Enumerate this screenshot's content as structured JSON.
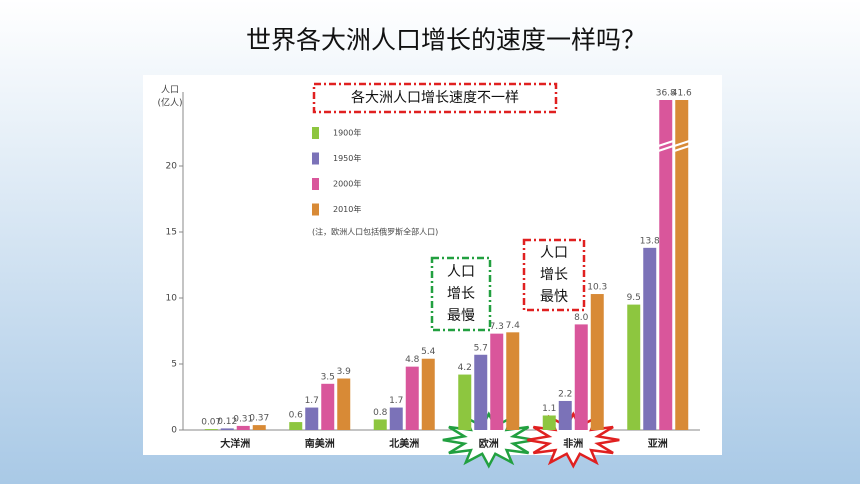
{
  "chart_data": {
    "type": "bar",
    "title": "世界各大洲人口增长的速度一样吗？",
    "y_label": [
      "人口",
      "(亿人)"
    ],
    "note": "(注，欧洲人口包括俄罗斯全部人口)",
    "categories": [
      "大洋洲",
      "南美洲",
      "北美洲",
      "欧洲",
      "非洲",
      "亚洲"
    ],
    "series": [
      {
        "name": "1900年",
        "color": "#8dc63f",
        "values": [
          0.07,
          0.6,
          0.8,
          4.2,
          1.1,
          9.5
        ],
        "value_labels": [
          "0.07",
          "0.6",
          "0.8",
          "4.2",
          "1.1",
          "9.5"
        ]
      },
      {
        "name": "1950年",
        "color": "#7b72b8",
        "values": [
          0.12,
          1.7,
          1.7,
          5.7,
          2.2,
          13.8
        ],
        "value_labels": [
          "0.12",
          "1.7",
          "1.7",
          "5.7",
          "2.2",
          "13.8"
        ]
      },
      {
        "name": "2000年",
        "color": "#d9569b",
        "values": [
          0.31,
          3.5,
          4.8,
          7.3,
          8.0,
          36.8
        ],
        "value_labels": [
          "0.31",
          "3.5",
          "4.8",
          "7.3",
          "8.0",
          "36.8"
        ]
      },
      {
        "name": "2010年",
        "color": "#d88a36",
        "values": [
          0.37,
          3.9,
          5.4,
          7.4,
          10.3,
          41.6
        ],
        "value_labels": [
          "0.37",
          "3.9",
          "5.4",
          "7.4",
          "10.3",
          "41.6"
        ]
      }
    ],
    "ylim": [
      0,
      25
    ],
    "yticks": [
      0,
      5,
      10,
      15,
      20
    ],
    "annotations": [
      {
        "lines": [
          "各大洲人口增长速度不一样"
        ],
        "color": "#e02020"
      },
      {
        "lines": [
          "人口",
          "增长",
          "最慢"
        ],
        "color": "#22a040"
      },
      {
        "lines": [
          "人口",
          "增长",
          "最快"
        ],
        "color": "#e02020"
      }
    ]
  }
}
